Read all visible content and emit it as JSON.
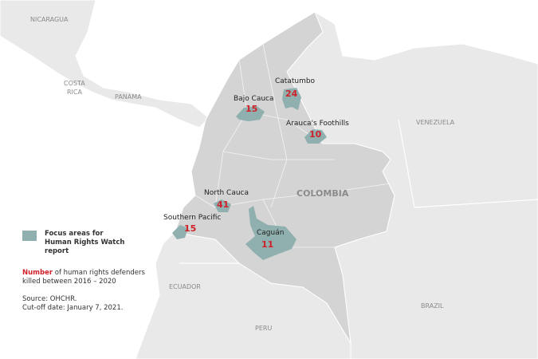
{
  "colors": {
    "focus": "#8fb0ae",
    "number": "#d0202a",
    "colombia": "#d4d4d4",
    "neighbors": "#e9e9e9",
    "sea": "#ffffff"
  },
  "countries": {
    "nicaragua": "NICARAGUA",
    "costa_rica_1": "COSTA",
    "costa_rica_2": "RICA",
    "panama": "PANAMA",
    "venezuela": "VENEZUELA",
    "colombia": "COLOMBIA",
    "ecuador": "ECUADOR",
    "peru": "PERU",
    "brazil": "BRAZIL"
  },
  "areas": [
    {
      "name": "Catatumbo",
      "count": "24"
    },
    {
      "name": "Bajo Cauca",
      "count": "15"
    },
    {
      "name": "Arauca's Foothills",
      "count": "10"
    },
    {
      "name": "North Cauca",
      "count": "41"
    },
    {
      "name": "Southern Pacific",
      "count": "15"
    },
    {
      "name": "Caguán",
      "count": "11"
    }
  ],
  "legend": {
    "focus_label_1": "Focus areas for",
    "focus_label_2": "Human Rights Watch",
    "focus_label_3": "report",
    "number_word": "Number",
    "number_rest": " of human rights defenders",
    "number_line2": "killed between 2016 – 2020",
    "source": "Source: OHCHR.",
    "cutoff": "Cut-off date: January 7, 2021."
  }
}
